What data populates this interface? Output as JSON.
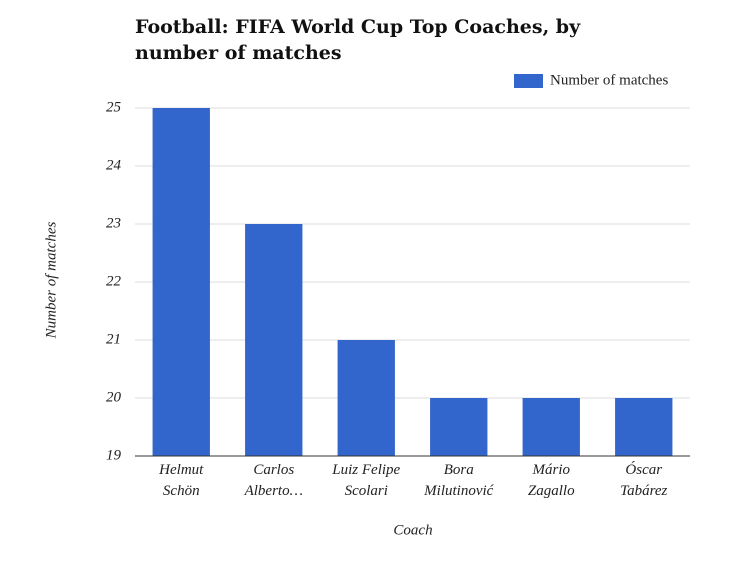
{
  "chart_data": {
    "type": "bar",
    "title": "Football: FIFA World Cup Top Coaches, by number of matches",
    "categories": [
      "Helmut\nSchön",
      "Carlos\nAlberto…",
      "Luiz Felipe\nScolari",
      "Bora\nMilutinović",
      "Mário\nZagallo",
      "Óscar\nTabárez"
    ],
    "series": [
      {
        "name": "Number of matches",
        "color": "#3366cc",
        "values": [
          25,
          23,
          21,
          20,
          20,
          20
        ]
      }
    ],
    "x_label": "Coach",
    "y_label": "Number of matches",
    "ylim": [
      19,
      25
    ],
    "yticks": [
      19,
      20,
      21,
      22,
      23,
      24,
      25
    ],
    "grid": true,
    "legend": "top-right"
  }
}
